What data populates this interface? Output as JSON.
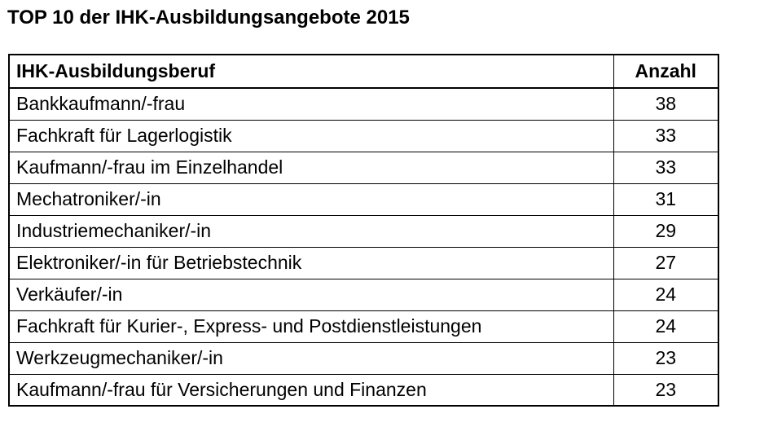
{
  "title": "TOP 10 der IHK-Ausbildungsangebote 2015",
  "chart_data": {
    "type": "table",
    "title": "TOP 10 der IHK-Ausbildungsangebote 2015",
    "columns": [
      "IHK-Ausbildungsberuf",
      "Anzahl"
    ],
    "categories": [
      "Bankkaufmann/-frau",
      "Fachkraft für Lagerlogistik",
      "Kaufmann/-frau im Einzelhandel",
      "Mechatroniker/-in",
      "Industriemechaniker/-in",
      "Elektroniker/-in für Betriebstechnik",
      "Verkäufer/-in",
      "Fachkraft für Kurier-, Express- und Postdienstleistungen",
      "Werkzeugmechaniker/-in",
      "Kaufmann/-frau für Versicherungen und Finanzen"
    ],
    "values": [
      38,
      33,
      33,
      31,
      29,
      27,
      24,
      24,
      23,
      23
    ],
    "text_color": "#000000",
    "background_color": "#ffffff",
    "border_color": "#000000",
    "grid": true,
    "legend": false
  }
}
